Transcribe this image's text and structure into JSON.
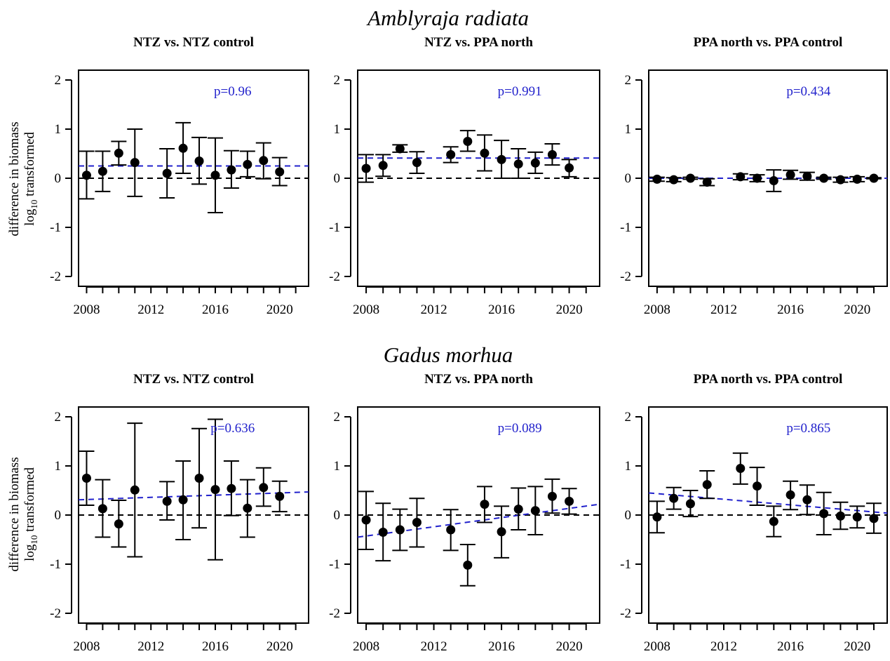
{
  "figure": {
    "species_titles": [
      "Amblyraja radiata",
      "Gadus morhua"
    ],
    "ylabel_line1": "difference in biomass",
    "ylabel_line2_prefix": "log",
    "ylabel_line2_sub": "10",
    "ylabel_line2_suffix": " transformed",
    "colors": {
      "points": "#000000",
      "trend": "#2222cc",
      "pvalue": "#2222cc",
      "zero": "#000000"
    }
  },
  "chart_data": [
    {
      "type": "scatter",
      "species": "Amblyraja radiata",
      "title": "NTZ vs. NTZ control",
      "pvalue": "p=0.96",
      "xlim": [
        2007.5,
        2021.8
      ],
      "ylim": [
        -2.2,
        2.2
      ],
      "xticks": [
        2008,
        2009,
        2010,
        2011,
        2012,
        2013,
        2014,
        2015,
        2016,
        2017,
        2018,
        2019,
        2020,
        2021
      ],
      "xticklabels": [
        2008,
        2012,
        2016,
        2020
      ],
      "yticks": [
        -2,
        -1,
        0,
        1,
        2
      ],
      "points": [
        {
          "x": 2008,
          "y": 0.06,
          "lo": -0.42,
          "hi": 0.55
        },
        {
          "x": 2009,
          "y": 0.14,
          "lo": -0.27,
          "hi": 0.55
        },
        {
          "x": 2010,
          "y": 0.51,
          "lo": 0.27,
          "hi": 0.75
        },
        {
          "x": 2011,
          "y": 0.32,
          "lo": -0.37,
          "hi": 1.0
        },
        {
          "x": 2013,
          "y": 0.1,
          "lo": -0.4,
          "hi": 0.6
        },
        {
          "x": 2014,
          "y": 0.61,
          "lo": 0.1,
          "hi": 1.13
        },
        {
          "x": 2015,
          "y": 0.35,
          "lo": -0.12,
          "hi": 0.83
        },
        {
          "x": 2016,
          "y": 0.06,
          "lo": -0.7,
          "hi": 0.82
        },
        {
          "x": 2017,
          "y": 0.17,
          "lo": -0.2,
          "hi": 0.56
        },
        {
          "x": 2018,
          "y": 0.28,
          "lo": 0.03,
          "hi": 0.55
        },
        {
          "x": 2019,
          "y": 0.36,
          "lo": -0.01,
          "hi": 0.72
        },
        {
          "x": 2020,
          "y": 0.13,
          "lo": -0.15,
          "hi": 0.42
        }
      ],
      "trend": {
        "x": [
          2007.5,
          2021.8
        ],
        "y": [
          0.25,
          0.25
        ]
      }
    },
    {
      "type": "scatter",
      "species": "Amblyraja radiata",
      "title": "NTZ vs. PPA north",
      "pvalue": "p=0.991",
      "xlim": [
        2007.5,
        2021.8
      ],
      "ylim": [
        -2.2,
        2.2
      ],
      "xticks": [
        2008,
        2009,
        2010,
        2011,
        2012,
        2013,
        2014,
        2015,
        2016,
        2017,
        2018,
        2019,
        2020,
        2021
      ],
      "xticklabels": [
        2008,
        2012,
        2016,
        2020
      ],
      "yticks": [
        -2,
        -1,
        0,
        1,
        2
      ],
      "points": [
        {
          "x": 2008,
          "y": 0.2,
          "lo": -0.08,
          "hi": 0.48
        },
        {
          "x": 2009,
          "y": 0.26,
          "lo": 0.04,
          "hi": 0.48
        },
        {
          "x": 2010,
          "y": 0.6,
          "lo": 0.53,
          "hi": 0.68
        },
        {
          "x": 2011,
          "y": 0.32,
          "lo": 0.1,
          "hi": 0.54
        },
        {
          "x": 2013,
          "y": 0.48,
          "lo": 0.32,
          "hi": 0.64
        },
        {
          "x": 2014,
          "y": 0.75,
          "lo": 0.55,
          "hi": 0.97
        },
        {
          "x": 2015,
          "y": 0.51,
          "lo": 0.15,
          "hi": 0.88
        },
        {
          "x": 2016,
          "y": 0.38,
          "lo": 0.0,
          "hi": 0.77
        },
        {
          "x": 2017,
          "y": 0.29,
          "lo": 0.0,
          "hi": 0.6
        },
        {
          "x": 2018,
          "y": 0.31,
          "lo": 0.1,
          "hi": 0.53
        },
        {
          "x": 2019,
          "y": 0.48,
          "lo": 0.27,
          "hi": 0.7
        },
        {
          "x": 2020,
          "y": 0.21,
          "lo": 0.03,
          "hi": 0.38
        }
      ],
      "trend": {
        "x": [
          2007.5,
          2021.8
        ],
        "y": [
          0.41,
          0.41
        ]
      }
    },
    {
      "type": "scatter",
      "species": "Amblyraja radiata",
      "title": "PPA north vs. PPA control",
      "pvalue": "p=0.434",
      "xlim": [
        2007.5,
        2021.8
      ],
      "ylim": [
        -2.2,
        2.2
      ],
      "xticks": [
        2008,
        2009,
        2010,
        2011,
        2012,
        2013,
        2014,
        2015,
        2016,
        2017,
        2018,
        2019,
        2020,
        2021
      ],
      "xticklabels": [
        2008,
        2012,
        2016,
        2020
      ],
      "yticks": [
        -2,
        -1,
        0,
        1,
        2
      ],
      "points": [
        {
          "x": 2008,
          "y": -0.02,
          "lo": -0.06,
          "hi": 0.02
        },
        {
          "x": 2009,
          "y": -0.03,
          "lo": -0.07,
          "hi": 0.01
        },
        {
          "x": 2010,
          "y": 0.0,
          "lo": -0.02,
          "hi": 0.02
        },
        {
          "x": 2011,
          "y": -0.08,
          "lo": -0.15,
          "hi": -0.01
        },
        {
          "x": 2013,
          "y": 0.03,
          "lo": -0.03,
          "hi": 0.09
        },
        {
          "x": 2014,
          "y": 0.0,
          "lo": -0.07,
          "hi": 0.07
        },
        {
          "x": 2015,
          "y": -0.05,
          "lo": -0.27,
          "hi": 0.17
        },
        {
          "x": 2016,
          "y": 0.07,
          "lo": -0.02,
          "hi": 0.16
        },
        {
          "x": 2017,
          "y": 0.04,
          "lo": -0.04,
          "hi": 0.12
        },
        {
          "x": 2018,
          "y": 0.0,
          "lo": -0.02,
          "hi": 0.02
        },
        {
          "x": 2019,
          "y": -0.03,
          "lo": -0.08,
          "hi": 0.02
        },
        {
          "x": 2020,
          "y": -0.02,
          "lo": -0.07,
          "hi": 0.03
        },
        {
          "x": 2021,
          "y": 0.0,
          "lo": -0.01,
          "hi": 0.01
        }
      ],
      "trend": {
        "x": [
          2007.5,
          2021.8
        ],
        "y": [
          0.0,
          0.0
        ]
      }
    },
    {
      "type": "scatter",
      "species": "Gadus morhua",
      "title": "NTZ vs. NTZ control",
      "pvalue": "p=0.636",
      "xlim": [
        2007.5,
        2021.8
      ],
      "ylim": [
        -2.2,
        2.2
      ],
      "xticks": [
        2008,
        2009,
        2010,
        2011,
        2012,
        2013,
        2014,
        2015,
        2016,
        2017,
        2018,
        2019,
        2020,
        2021
      ],
      "xticklabels": [
        2008,
        2012,
        2016,
        2020
      ],
      "yticks": [
        -2,
        -1,
        0,
        1,
        2
      ],
      "points": [
        {
          "x": 2008,
          "y": 0.75,
          "lo": 0.2,
          "hi": 1.3
        },
        {
          "x": 2009,
          "y": 0.13,
          "lo": -0.45,
          "hi": 0.72
        },
        {
          "x": 2010,
          "y": -0.18,
          "lo": -0.65,
          "hi": 0.3
        },
        {
          "x": 2011,
          "y": 0.51,
          "lo": -0.85,
          "hi": 1.87
        },
        {
          "x": 2013,
          "y": 0.28,
          "lo": -0.1,
          "hi": 0.68
        },
        {
          "x": 2014,
          "y": 0.31,
          "lo": -0.5,
          "hi": 1.1
        },
        {
          "x": 2015,
          "y": 0.75,
          "lo": -0.26,
          "hi": 1.76
        },
        {
          "x": 2016,
          "y": 0.52,
          "lo": -0.91,
          "hi": 1.95
        },
        {
          "x": 2017,
          "y": 0.54,
          "lo": -0.01,
          "hi": 1.1
        },
        {
          "x": 2018,
          "y": 0.14,
          "lo": -0.45,
          "hi": 0.72
        },
        {
          "x": 2019,
          "y": 0.56,
          "lo": 0.18,
          "hi": 0.96
        },
        {
          "x": 2020,
          "y": 0.38,
          "lo": 0.07,
          "hi": 0.69
        }
      ],
      "trend": {
        "x": [
          2007.5,
          2021.8
        ],
        "y": [
          0.31,
          0.47
        ]
      }
    },
    {
      "type": "scatter",
      "species": "Gadus morhua",
      "title": "NTZ vs. PPA north",
      "pvalue": "p=0.089",
      "xlim": [
        2007.5,
        2021.8
      ],
      "ylim": [
        -2.2,
        2.2
      ],
      "xticks": [
        2008,
        2009,
        2010,
        2011,
        2012,
        2013,
        2014,
        2015,
        2016,
        2017,
        2018,
        2019,
        2020,
        2021
      ],
      "xticklabels": [
        2008,
        2012,
        2016,
        2020
      ],
      "yticks": [
        -2,
        -1,
        0,
        1,
        2
      ],
      "points": [
        {
          "x": 2008,
          "y": -0.1,
          "lo": -0.7,
          "hi": 0.48
        },
        {
          "x": 2009,
          "y": -0.35,
          "lo": -0.93,
          "hi": 0.24
        },
        {
          "x": 2010,
          "y": -0.3,
          "lo": -0.72,
          "hi": 0.12
        },
        {
          "x": 2011,
          "y": -0.15,
          "lo": -0.65,
          "hi": 0.34
        },
        {
          "x": 2013,
          "y": -0.3,
          "lo": -0.72,
          "hi": 0.11
        },
        {
          "x": 2014,
          "y": -1.02,
          "lo": -1.44,
          "hi": -0.6
        },
        {
          "x": 2015,
          "y": 0.22,
          "lo": -0.15,
          "hi": 0.58
        },
        {
          "x": 2016,
          "y": -0.34,
          "lo": -0.87,
          "hi": 0.18
        },
        {
          "x": 2017,
          "y": 0.12,
          "lo": -0.3,
          "hi": 0.55
        },
        {
          "x": 2018,
          "y": 0.09,
          "lo": -0.4,
          "hi": 0.58
        },
        {
          "x": 2019,
          "y": 0.38,
          "lo": 0.04,
          "hi": 0.73
        },
        {
          "x": 2020,
          "y": 0.28,
          "lo": 0.02,
          "hi": 0.54
        }
      ],
      "trend": {
        "x": [
          2007.5,
          2021.8
        ],
        "y": [
          -0.45,
          0.22
        ]
      }
    },
    {
      "type": "scatter",
      "species": "Gadus morhua",
      "title": "PPA north vs. PPA control",
      "pvalue": "p=0.865",
      "xlim": [
        2007.5,
        2021.8
      ],
      "ylim": [
        -2.2,
        2.2
      ],
      "xticks": [
        2008,
        2009,
        2010,
        2011,
        2012,
        2013,
        2014,
        2015,
        2016,
        2017,
        2018,
        2019,
        2020,
        2021
      ],
      "xticklabels": [
        2008,
        2012,
        2016,
        2020
      ],
      "yticks": [
        -2,
        -1,
        0,
        1,
        2
      ],
      "points": [
        {
          "x": 2008,
          "y": -0.04,
          "lo": -0.36,
          "hi": 0.28
        },
        {
          "x": 2009,
          "y": 0.34,
          "lo": 0.12,
          "hi": 0.56
        },
        {
          "x": 2010,
          "y": 0.23,
          "lo": -0.03,
          "hi": 0.5
        },
        {
          "x": 2011,
          "y": 0.62,
          "lo": 0.34,
          "hi": 0.9
        },
        {
          "x": 2013,
          "y": 0.95,
          "lo": 0.63,
          "hi": 1.26
        },
        {
          "x": 2014,
          "y": 0.59,
          "lo": 0.2,
          "hi": 0.97
        },
        {
          "x": 2015,
          "y": -0.13,
          "lo": -0.44,
          "hi": 0.18
        },
        {
          "x": 2016,
          "y": 0.41,
          "lo": 0.11,
          "hi": 0.69
        },
        {
          "x": 2017,
          "y": 0.31,
          "lo": 0.01,
          "hi": 0.61
        },
        {
          "x": 2018,
          "y": 0.03,
          "lo": -0.4,
          "hi": 0.46
        },
        {
          "x": 2019,
          "y": -0.02,
          "lo": -0.29,
          "hi": 0.26
        },
        {
          "x": 2020,
          "y": -0.04,
          "lo": -0.26,
          "hi": 0.18
        },
        {
          "x": 2021,
          "y": -0.07,
          "lo": -0.37,
          "hi": 0.24
        }
      ],
      "trend": {
        "x": [
          2007.5,
          2021.8
        ],
        "y": [
          0.45,
          0.04
        ]
      }
    }
  ]
}
